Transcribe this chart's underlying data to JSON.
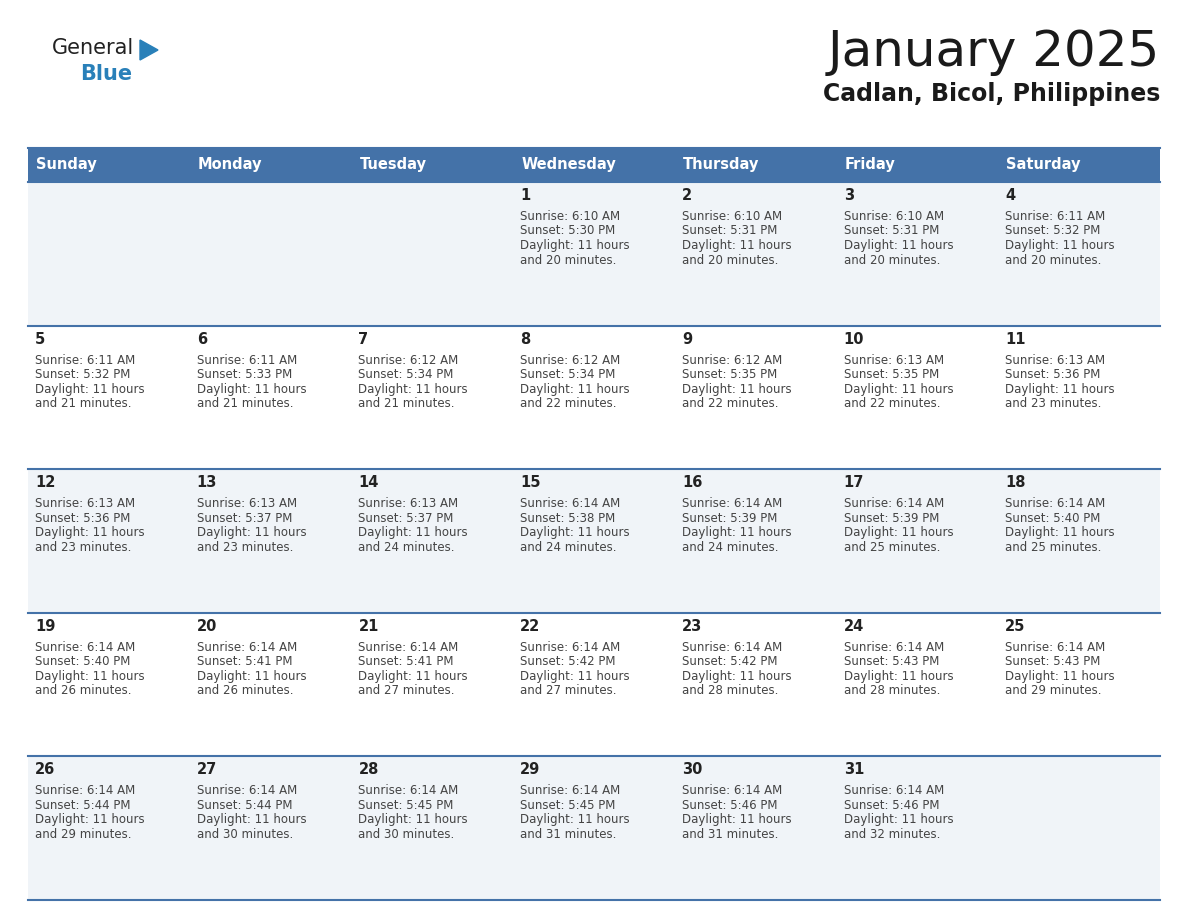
{
  "title": "January 2025",
  "subtitle": "Cadlan, Bicol, Philippines",
  "header_bg_color": "#4472a8",
  "header_text_color": "#ffffff",
  "days_of_week": [
    "Sunday",
    "Monday",
    "Tuesday",
    "Wednesday",
    "Thursday",
    "Friday",
    "Saturday"
  ],
  "row_bg_colors": [
    "#f0f4f8",
    "#ffffff",
    "#f0f4f8",
    "#ffffff",
    "#f0f4f8"
  ],
  "cell_text_color": "#444444",
  "day_number_color": "#222222",
  "line_color": "#4472a8",
  "logo_general_color": "#222222",
  "logo_blue_color": "#2980b9",
  "calendar": [
    [
      null,
      null,
      null,
      {
        "day": 1,
        "sunrise": "6:10 AM",
        "sunset": "5:30 PM",
        "daylight": "11 hours",
        "daylight2": "and 20 minutes."
      },
      {
        "day": 2,
        "sunrise": "6:10 AM",
        "sunset": "5:31 PM",
        "daylight": "11 hours",
        "daylight2": "and 20 minutes."
      },
      {
        "day": 3,
        "sunrise": "6:10 AM",
        "sunset": "5:31 PM",
        "daylight": "11 hours",
        "daylight2": "and 20 minutes."
      },
      {
        "day": 4,
        "sunrise": "6:11 AM",
        "sunset": "5:32 PM",
        "daylight": "11 hours",
        "daylight2": "and 20 minutes."
      }
    ],
    [
      {
        "day": 5,
        "sunrise": "6:11 AM",
        "sunset": "5:32 PM",
        "daylight": "11 hours",
        "daylight2": "and 21 minutes."
      },
      {
        "day": 6,
        "sunrise": "6:11 AM",
        "sunset": "5:33 PM",
        "daylight": "11 hours",
        "daylight2": "and 21 minutes."
      },
      {
        "day": 7,
        "sunrise": "6:12 AM",
        "sunset": "5:34 PM",
        "daylight": "11 hours",
        "daylight2": "and 21 minutes."
      },
      {
        "day": 8,
        "sunrise": "6:12 AM",
        "sunset": "5:34 PM",
        "daylight": "11 hours",
        "daylight2": "and 22 minutes."
      },
      {
        "day": 9,
        "sunrise": "6:12 AM",
        "sunset": "5:35 PM",
        "daylight": "11 hours",
        "daylight2": "and 22 minutes."
      },
      {
        "day": 10,
        "sunrise": "6:13 AM",
        "sunset": "5:35 PM",
        "daylight": "11 hours",
        "daylight2": "and 22 minutes."
      },
      {
        "day": 11,
        "sunrise": "6:13 AM",
        "sunset": "5:36 PM",
        "daylight": "11 hours",
        "daylight2": "and 23 minutes."
      }
    ],
    [
      {
        "day": 12,
        "sunrise": "6:13 AM",
        "sunset": "5:36 PM",
        "daylight": "11 hours",
        "daylight2": "and 23 minutes."
      },
      {
        "day": 13,
        "sunrise": "6:13 AM",
        "sunset": "5:37 PM",
        "daylight": "11 hours",
        "daylight2": "and 23 minutes."
      },
      {
        "day": 14,
        "sunrise": "6:13 AM",
        "sunset": "5:37 PM",
        "daylight": "11 hours",
        "daylight2": "and 24 minutes."
      },
      {
        "day": 15,
        "sunrise": "6:14 AM",
        "sunset": "5:38 PM",
        "daylight": "11 hours",
        "daylight2": "and 24 minutes."
      },
      {
        "day": 16,
        "sunrise": "6:14 AM",
        "sunset": "5:39 PM",
        "daylight": "11 hours",
        "daylight2": "and 24 minutes."
      },
      {
        "day": 17,
        "sunrise": "6:14 AM",
        "sunset": "5:39 PM",
        "daylight": "11 hours",
        "daylight2": "and 25 minutes."
      },
      {
        "day": 18,
        "sunrise": "6:14 AM",
        "sunset": "5:40 PM",
        "daylight": "11 hours",
        "daylight2": "and 25 minutes."
      }
    ],
    [
      {
        "day": 19,
        "sunrise": "6:14 AM",
        "sunset": "5:40 PM",
        "daylight": "11 hours",
        "daylight2": "and 26 minutes."
      },
      {
        "day": 20,
        "sunrise": "6:14 AM",
        "sunset": "5:41 PM",
        "daylight": "11 hours",
        "daylight2": "and 26 minutes."
      },
      {
        "day": 21,
        "sunrise": "6:14 AM",
        "sunset": "5:41 PM",
        "daylight": "11 hours",
        "daylight2": "and 27 minutes."
      },
      {
        "day": 22,
        "sunrise": "6:14 AM",
        "sunset": "5:42 PM",
        "daylight": "11 hours",
        "daylight2": "and 27 minutes."
      },
      {
        "day": 23,
        "sunrise": "6:14 AM",
        "sunset": "5:42 PM",
        "daylight": "11 hours",
        "daylight2": "and 28 minutes."
      },
      {
        "day": 24,
        "sunrise": "6:14 AM",
        "sunset": "5:43 PM",
        "daylight": "11 hours",
        "daylight2": "and 28 minutes."
      },
      {
        "day": 25,
        "sunrise": "6:14 AM",
        "sunset": "5:43 PM",
        "daylight": "11 hours",
        "daylight2": "and 29 minutes."
      }
    ],
    [
      {
        "day": 26,
        "sunrise": "6:14 AM",
        "sunset": "5:44 PM",
        "daylight": "11 hours",
        "daylight2": "and 29 minutes."
      },
      {
        "day": 27,
        "sunrise": "6:14 AM",
        "sunset": "5:44 PM",
        "daylight": "11 hours",
        "daylight2": "and 30 minutes."
      },
      {
        "day": 28,
        "sunrise": "6:14 AM",
        "sunset": "5:45 PM",
        "daylight": "11 hours",
        "daylight2": "and 30 minutes."
      },
      {
        "day": 29,
        "sunrise": "6:14 AM",
        "sunset": "5:45 PM",
        "daylight": "11 hours",
        "daylight2": "and 31 minutes."
      },
      {
        "day": 30,
        "sunrise": "6:14 AM",
        "sunset": "5:46 PM",
        "daylight": "11 hours",
        "daylight2": "and 31 minutes."
      },
      {
        "day": 31,
        "sunrise": "6:14 AM",
        "sunset": "5:46 PM",
        "daylight": "11 hours",
        "daylight2": "and 32 minutes."
      },
      null
    ]
  ]
}
